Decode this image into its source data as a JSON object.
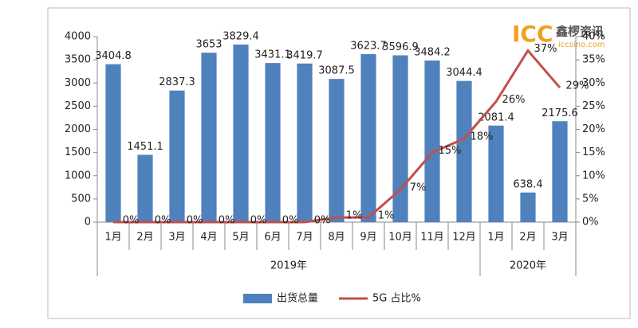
{
  "chart_data": {
    "type": "bar",
    "categories": [
      "1月",
      "2月",
      "3月",
      "4月",
      "5月",
      "6月",
      "7月",
      "8月",
      "9月",
      "10月",
      "11月",
      "12月",
      "1月",
      "2月",
      "3月"
    ],
    "groups": [
      {
        "label": "2019年",
        "count": 12
      },
      {
        "label": "2020年",
        "count": 3
      }
    ],
    "series": [
      {
        "name": "出货总量",
        "type": "bar",
        "color": "#4f81bd",
        "values": [
          3404.8,
          1451.1,
          2837.3,
          3653,
          3829.4,
          3431.1,
          3419.7,
          3087.5,
          3623.7,
          3596.9,
          3484.2,
          3044.4,
          2081.4,
          638.4,
          2175.6
        ]
      },
      {
        "name": "5G 占比%",
        "type": "line",
        "axis": "y2",
        "color": "#c0504d",
        "values": [
          0,
          0,
          0,
          0,
          0,
          0,
          0,
          1,
          1,
          7,
          15,
          18,
          26,
          37,
          29
        ],
        "value_labels": [
          "0%",
          "0%",
          "0%",
          "0%",
          "0%",
          "0%",
          "0%",
          "1%",
          "1%",
          "7%",
          "15%",
          "18%",
          "26%",
          "37%",
          "29%"
        ]
      }
    ],
    "ylim": [
      0,
      4000
    ],
    "yticks": [
      0,
      500,
      1000,
      1500,
      2000,
      2500,
      3000,
      3500,
      4000
    ],
    "y2lim": [
      0,
      40
    ],
    "y2ticks": [
      {
        "value": 0,
        "label": "0%"
      },
      {
        "value": 5,
        "label": "5%"
      },
      {
        "value": 10,
        "label": "10%"
      },
      {
        "value": 15,
        "label": "15%"
      },
      {
        "value": 20,
        "label": "20%"
      },
      {
        "value": 25,
        "label": "25%"
      },
      {
        "value": 30,
        "label": "30%"
      },
      {
        "value": 35,
        "label": "35%"
      },
      {
        "value": 40,
        "label": "40%"
      }
    ],
    "legend": "bottom",
    "watermark": {
      "logo": "ICC",
      "brand": "鑫椤资讯",
      "site": "iccsino.com"
    }
  }
}
